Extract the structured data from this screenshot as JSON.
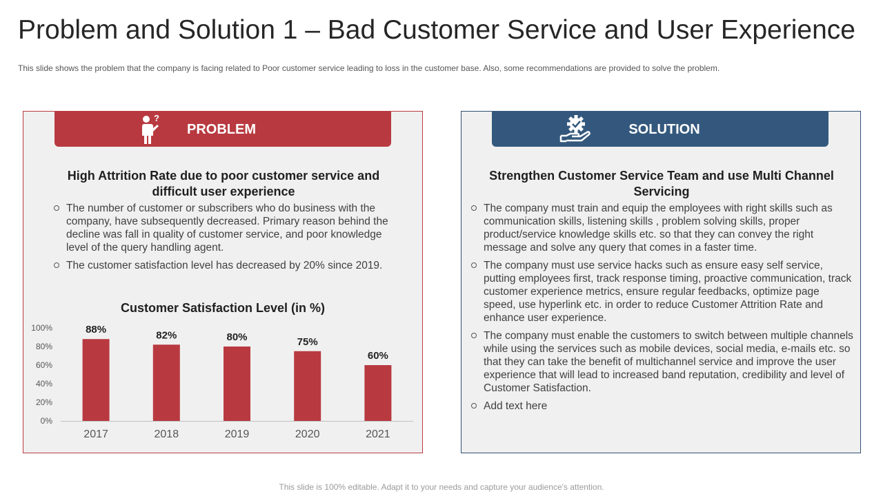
{
  "slide": {
    "title": "Problem and Solution 1 – Bad Customer Service and User Experience",
    "subtitle": "This slide shows the problem that the company is facing related to Poor customer service leading to loss in the customer base. Also, some recommendations are provided to solve the problem.",
    "footer": "This slide is 100% editable. Adapt it to your needs and capture your audience's attention."
  },
  "problem": {
    "header": "PROBLEM",
    "icon": "confused-person-icon",
    "heading": "High Attrition Rate due to poor customer service and difficult user experience",
    "bullets": [
      "The number of customer or subscribers who do business with the company, have subsequently decreased. Primary reason behind the decline was fall in quality of customer service, and poor knowledge level of the query handling agent.",
      "The customer satisfaction level has decreased by 20% since 2019."
    ]
  },
  "solution": {
    "header": "SOLUTION",
    "icon": "gear-in-hand-icon",
    "heading": "Strengthen Customer Service Team and use Multi Channel Servicing",
    "bullets": [
      "The company must train and equip the employees with right skills such as communication skills, listening skills , problem solving skills, proper product/service knowledge skills etc. so that they can convey the right message and solve any query that comes in a faster time.",
      "The company must use service hacks such as ensure easy self service, putting employees first, track response timing, proactive communication, track customer experience metrics, ensure regular feedbacks, optimize page speed, use hyperlink etc. in order to reduce Customer Attrition Rate and enhance user experience.",
      "The company must enable the customers to switch between multiple channels while using the services such as mobile devices, social media, e-mails etc. so that they can take the benefit of multichannel service and improve the user experience that will lead to increased band reputation, credibility and level of Customer Satisfaction.",
      "Add text here"
    ]
  },
  "colors": {
    "problem": "#b83a40",
    "solution": "#34587d",
    "bar": "#b83a40"
  },
  "chart_data": {
    "type": "bar",
    "title": "Customer Satisfaction Level (in %)",
    "categories": [
      "2017",
      "2018",
      "2019",
      "2020",
      "2021"
    ],
    "values": [
      88,
      82,
      80,
      75,
      60
    ],
    "data_labels": [
      "88%",
      "82%",
      "80%",
      "75%",
      "60%"
    ],
    "ylim": [
      0,
      100
    ],
    "yticks": [
      "0%",
      "20%",
      "40%",
      "60%",
      "80%",
      "100%"
    ],
    "xlabel": "",
    "ylabel": "",
    "grid": false
  }
}
